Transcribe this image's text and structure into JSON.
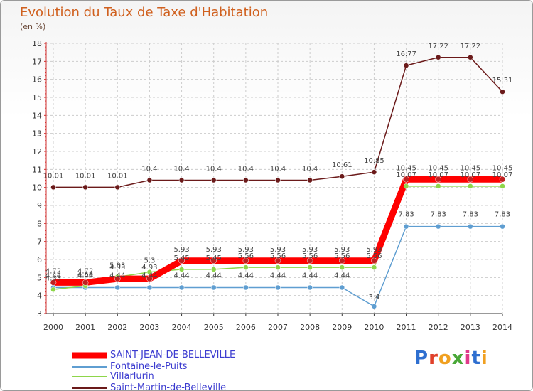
{
  "chart_data": {
    "type": "line",
    "title": "Evolution du Taux de Taxe d'Habitation",
    "subtitle": "(en %)",
    "x": [
      "2000",
      "2001",
      "2002",
      "2003",
      "2004",
      "2005",
      "2006",
      "2007",
      "2008",
      "2009",
      "2010",
      "2011",
      "2012",
      "2013",
      "2014"
    ],
    "y_ticks": [
      "3",
      "4",
      "5",
      "6",
      "7",
      "8",
      "9",
      "10",
      "11",
      "12",
      "13",
      "14",
      "15",
      "16",
      "17",
      "18"
    ],
    "ylim": [
      3,
      18
    ],
    "grid": true,
    "series": [
      {
        "name": "SAINT-JEAN-DE-BELLEVILLE",
        "color": "#ff0000",
        "values": [
          4.72,
          4.72,
          4.93,
          4.93,
          5.93,
          5.93,
          5.93,
          5.93,
          5.93,
          5.93,
          5.93,
          10.45,
          10.45,
          10.45,
          10.45
        ],
        "labels": [
          "4.72",
          "4.72",
          "4.93",
          "4.93",
          "5.93",
          "5.93",
          "5.93",
          "5.93",
          "5.93",
          "5.93",
          "5.93",
          "10.45",
          "10.45",
          "10.45",
          "10.45"
        ]
      },
      {
        "name": "Fontaine-le-Puits",
        "color": "#5f9ed1",
        "values": [
          4.44,
          4.44,
          4.44,
          4.44,
          4.44,
          4.44,
          4.44,
          4.44,
          4.44,
          4.44,
          3.4,
          7.83,
          7.83,
          7.83,
          7.83
        ],
        "labels": [
          "4.44",
          "4.44",
          "4.44",
          "4.44",
          "4.44",
          "4.44",
          "4.44",
          "4.44",
          "4.44",
          "4.44",
          "3.4",
          "7.83",
          "7.83",
          "7.83",
          "7.83"
        ]
      },
      {
        "name": "Villarlurin",
        "color": "#8ed64a",
        "values": [
          4.33,
          4.54,
          5.03,
          5.3,
          5.45,
          5.45,
          5.56,
          5.56,
          5.56,
          5.56,
          5.56,
          10.07,
          10.07,
          10.07,
          10.07
        ],
        "labels": [
          "4.33",
          "4.54",
          "5.03",
          "5.3",
          "5.45",
          "5.45",
          "5.56",
          "5.56",
          "5.56",
          "5.56",
          "5.56",
          "10.07",
          "10.07",
          "10.07",
          "10.07"
        ]
      },
      {
        "name": "Saint-Martin-de-Belleville",
        "color": "#6b1a1a",
        "values": [
          10.01,
          10.01,
          10.01,
          10.4,
          10.4,
          10.4,
          10.4,
          10.4,
          10.4,
          10.61,
          10.85,
          16.77,
          17.22,
          17.22,
          15.31
        ],
        "labels": [
          "10.01",
          "10.01",
          "10.01",
          "10.4",
          "10.4",
          "10.4",
          "10.4",
          "10.4",
          "10.4",
          "10.61",
          "10.85",
          "16.77",
          "17.22",
          "17.22",
          "15.31"
        ]
      }
    ]
  },
  "logo": {
    "text": "Proxiti",
    "letter_colors": [
      "#2e6fd0",
      "#e0402a",
      "#f0a020",
      "#4aa838",
      "#e03a8a",
      "#2e6fd0",
      "#f0a020"
    ]
  }
}
